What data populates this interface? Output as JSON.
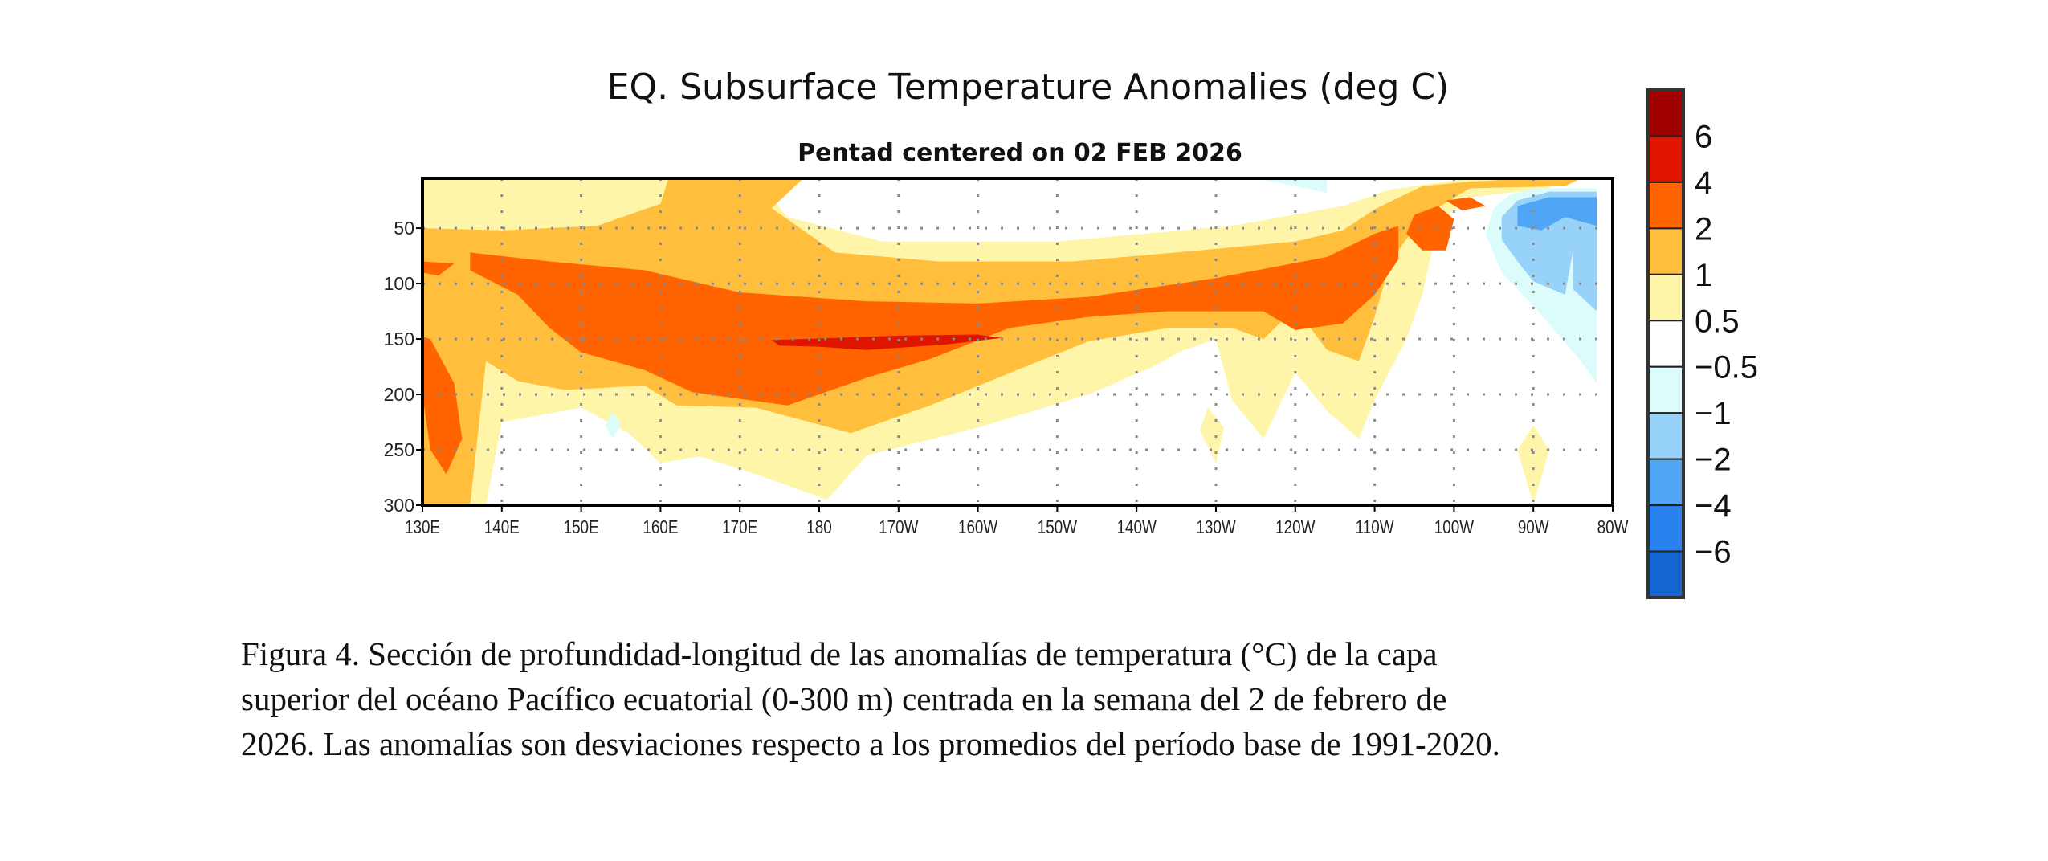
{
  "chart_data": {
    "type": "heatmap",
    "subtype": "filled-contour depth-longitude section",
    "title": "EQ. Subsurface Temperature Anomalies (deg C)",
    "subtitle": "Pentad centered on 02 FEB 2026",
    "xlabel": "",
    "ylabel": "",
    "x_axis": {
      "units": "longitude (degrees east, 130E to 80W)",
      "range": [
        130,
        280
      ],
      "ticks": [
        130,
        140,
        150,
        160,
        170,
        180,
        190,
        200,
        210,
        220,
        230,
        240,
        250,
        260,
        270,
        280
      ],
      "tick_labels": [
        "130E",
        "140E",
        "150E",
        "160E",
        "170E",
        "180",
        "170W",
        "160W",
        "150W",
        "140W",
        "130W",
        "120W",
        "110W",
        "100W",
        "90W",
        "80W"
      ]
    },
    "y_axis": {
      "units": "depth (m)",
      "range": [
        5,
        300
      ],
      "inverted": true,
      "ticks": [
        50,
        100,
        150,
        200,
        250,
        300
      ],
      "tick_labels": [
        "50",
        "100",
        "150",
        "200",
        "250",
        "300"
      ]
    },
    "grid": true,
    "colorbar": {
      "placement": "right",
      "levels": [
        -6,
        -4,
        -2,
        -1,
        -0.5,
        0.5,
        1,
        2,
        4,
        6
      ],
      "tick_labels": [
        "6",
        "4",
        "2",
        "1",
        "0.5",
        "−0.5",
        "−1",
        "−2",
        "−4",
        "−6"
      ],
      "bins": [
        {
          "range": "> 6",
          "color": "#a00000"
        },
        {
          "range": "4 to 6",
          "color": "#e01500"
        },
        {
          "range": "2 to 4",
          "color": "#ff6400"
        },
        {
          "range": "1 to 2",
          "color": "#ffbe3c"
        },
        {
          "range": "0.5 to 1",
          "color": "#fff5a8"
        },
        {
          "range": "-0.5 to 0.5",
          "color": "#ffffff"
        },
        {
          "range": "-1 to -0.5",
          "color": "#dcfcfc"
        },
        {
          "range": "-2 to -1",
          "color": "#96d2fa"
        },
        {
          "range": "-4 to -2",
          "color": "#50a5f5"
        },
        {
          "range": "-6 to -4",
          "color": "#2882f0"
        },
        {
          "range": "< -6",
          "color": "#1464d2"
        }
      ]
    },
    "regions": [
      {
        "level": "0.5 to 1",
        "color": "#fff5a8",
        "points": [
          [
            130,
            5
          ],
          [
            172,
            5
          ],
          [
            176,
            40
          ],
          [
            188,
            62
          ],
          [
            210,
            62
          ],
          [
            232,
            48
          ],
          [
            246,
            30
          ],
          [
            252,
            15
          ],
          [
            262,
            5
          ],
          [
            272,
            5
          ],
          [
            272,
            14
          ],
          [
            262,
            22
          ],
          [
            258,
            45
          ],
          [
            256,
            110
          ],
          [
            254,
            150
          ],
          [
            250,
            205
          ],
          [
            248,
            240
          ],
          [
            244,
            215
          ],
          [
            240,
            180
          ],
          [
            236,
            240
          ],
          [
            232,
            205
          ],
          [
            230,
            150
          ],
          [
            226,
            160
          ],
          [
            222,
            175
          ],
          [
            214,
            200
          ],
          [
            200,
            230
          ],
          [
            186,
            255
          ],
          [
            181,
            295
          ],
          [
            172,
            272
          ],
          [
            165,
            256
          ],
          [
            160,
            262
          ],
          [
            156,
            235
          ],
          [
            150,
            212
          ],
          [
            140,
            225
          ],
          [
            138,
            300
          ],
          [
            130,
            300
          ]
        ]
      },
      {
        "level": "0.5 to 1",
        "color": "#fff5a8",
        "points": [
          [
            229,
            212
          ],
          [
            231,
            230
          ],
          [
            230,
            262
          ],
          [
            228,
            232
          ]
        ]
      },
      {
        "level": "0.5 to 1",
        "color": "#fff5a8",
        "points": [
          [
            270,
            228
          ],
          [
            272,
            250
          ],
          [
            270,
            300
          ],
          [
            268,
            250
          ]
        ]
      },
      {
        "level": "1 to 2",
        "color": "#ffbe3c",
        "points": [
          [
            130,
            50
          ],
          [
            140,
            52
          ],
          [
            152,
            48
          ],
          [
            160,
            28
          ],
          [
            161,
            5
          ],
          [
            178,
            5
          ],
          [
            174,
            32
          ],
          [
            182,
            72
          ],
          [
            195,
            80
          ],
          [
            212,
            80
          ],
          [
            228,
            70
          ],
          [
            240,
            62
          ],
          [
            246,
            52
          ],
          [
            250,
            33
          ],
          [
            256,
            12
          ],
          [
            262,
            8
          ],
          [
            270,
            5
          ],
          [
            276,
            5
          ],
          [
            274,
            12
          ],
          [
            262,
            14
          ],
          [
            256,
            40
          ],
          [
            252,
            80
          ],
          [
            250,
            130
          ],
          [
            248,
            170
          ],
          [
            244,
            160
          ],
          [
            240,
            122
          ],
          [
            236,
            150
          ],
          [
            232,
            140
          ],
          [
            224,
            140
          ],
          [
            214,
            152
          ],
          [
            206,
            175
          ],
          [
            194,
            210
          ],
          [
            184,
            235
          ],
          [
            172,
            212
          ],
          [
            162,
            210
          ],
          [
            158,
            192
          ],
          [
            148,
            196
          ],
          [
            142,
            188
          ],
          [
            138,
            170
          ],
          [
            136,
            300
          ],
          [
            130,
            300
          ]
        ]
      },
      {
        "level": "2 to 4",
        "color": "#ff6400"
      },
      {
        "level": "2 to 4",
        "color": "#ff6400",
        "points": [
          [
            130,
            80
          ],
          [
            134,
            82
          ],
          [
            132,
            93
          ],
          [
            130,
            90
          ]
        ]
      },
      {
        "level": "2 to 4",
        "color": "#ff6400",
        "points": [
          [
            130,
            148
          ],
          [
            131,
            150
          ],
          [
            134,
            190
          ],
          [
            135,
            240
          ],
          [
            133,
            272
          ],
          [
            131,
            250
          ],
          [
            130,
            200
          ]
        ]
      },
      {
        "level": "2 to 4",
        "color": "#ff6400",
        "points": [
          [
            136,
            72
          ],
          [
            146,
            80
          ],
          [
            158,
            88
          ],
          [
            170,
            108
          ],
          [
            186,
            116
          ],
          [
            200,
            118
          ],
          [
            214,
            112
          ],
          [
            230,
            95
          ],
          [
            244,
            76
          ],
          [
            250,
            55
          ],
          [
            253,
            48
          ],
          [
            253,
            78
          ],
          [
            250,
            110
          ],
          [
            246,
            136
          ],
          [
            240,
            142
          ],
          [
            236,
            125
          ],
          [
            224,
            125
          ],
          [
            214,
            130
          ],
          [
            204,
            140
          ],
          [
            194,
            168
          ],
          [
            186,
            185
          ],
          [
            176,
            210
          ],
          [
            164,
            198
          ],
          [
            158,
            178
          ],
          [
            150,
            162
          ],
          [
            146,
            140
          ],
          [
            142,
            110
          ],
          [
            136,
            88
          ]
        ]
      },
      {
        "level": "2 to 4",
        "color": "#ff6400",
        "points": [
          [
            255,
            38
          ],
          [
            258,
            30
          ],
          [
            260,
            42
          ],
          [
            259,
            70
          ],
          [
            256,
            70
          ],
          [
            254,
            55
          ]
        ]
      },
      {
        "level": "2 to 4",
        "color": "#ff6400",
        "points": [
          [
            259,
            25
          ],
          [
            262,
            22
          ],
          [
            264,
            30
          ],
          [
            261,
            34
          ]
        ]
      },
      {
        "level": "4 to 6",
        "color": "#e01500",
        "points": [
          [
            174,
            151
          ],
          [
            182,
            149
          ],
          [
            190,
            147
          ],
          [
            200,
            146
          ],
          [
            203,
            149
          ],
          [
            196,
            155
          ],
          [
            186,
            160
          ],
          [
            180,
            157
          ],
          [
            175,
            156
          ]
        ]
      },
      {
        "level": "-1 to -0.5",
        "color": "#dcfcfc",
        "points": [
          [
            235,
            5
          ],
          [
            244,
            5
          ],
          [
            244,
            18
          ],
          [
            240,
            12
          ]
        ]
      },
      {
        "level": "-1 to -0.5",
        "color": "#dcfcfc",
        "points": [
          [
            265,
            32
          ],
          [
            267,
            20
          ],
          [
            270,
            14
          ],
          [
            278,
            14
          ],
          [
            278,
            190
          ],
          [
            276,
            170
          ],
          [
            270,
            120
          ],
          [
            266,
            90
          ],
          [
            264,
            55
          ]
        ]
      },
      {
        "level": "-2 to -1",
        "color": "#96d2fa",
        "points": [
          [
            266,
            40
          ],
          [
            268,
            25
          ],
          [
            272,
            17
          ],
          [
            278,
            17
          ],
          [
            278,
            125
          ],
          [
            275,
            105
          ],
          [
            275,
            70
          ],
          [
            274,
            110
          ],
          [
            270,
            98
          ],
          [
            268,
            80
          ],
          [
            266,
            60
          ]
        ]
      },
      {
        "level": "-4 to -2",
        "color": "#50a5f5",
        "points": [
          [
            268,
            30
          ],
          [
            272,
            22
          ],
          [
            278,
            22
          ],
          [
            278,
            48
          ],
          [
            274,
            40
          ],
          [
            271,
            52
          ],
          [
            268,
            48
          ]
        ]
      },
      {
        "level": "-1 to -0.5",
        "color": "#dcfcfc",
        "points": [
          [
            153,
            228
          ],
          [
            154,
            216
          ],
          [
            155,
            226
          ],
          [
            154,
            240
          ]
        ]
      }
    ]
  },
  "caption": {
    "lines": [
      "Figura 4. Sección de profundidad-longitud de las anomalías de temperatura (°C) de la capa",
      "superior del océano Pacífico ecuatorial (0-300 m) centrada en la semana del 2 de febrero de",
      "2026. Las anomalías son desviaciones respecto a los promedios del período base de 1991-2020."
    ]
  }
}
